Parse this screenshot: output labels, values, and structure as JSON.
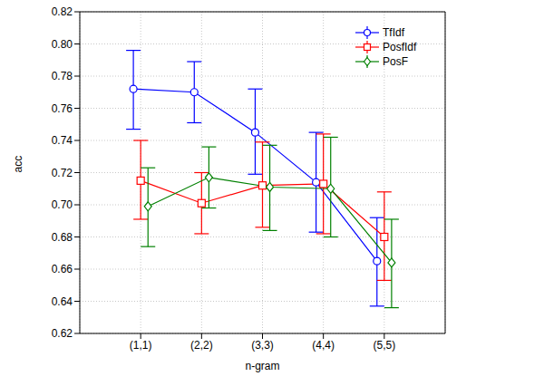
{
  "chart_data": {
    "type": "line",
    "x_label": "n-gram",
    "y_label": "acc",
    "categories": [
      "(1,1)",
      "(2,2)",
      "(3,3)",
      "(4,4)",
      "(5,5)"
    ],
    "ylim": [
      0.62,
      0.82
    ],
    "yticks": [
      0.62,
      0.64,
      0.66,
      0.68,
      {
        "value": 0.7,
        "label": "0.70"
      },
      0.72,
      0.74,
      0.76,
      0.78,
      {
        "value": 0.8,
        "label": "0.80"
      },
      0.82
    ],
    "grid": true,
    "legend": "upper right",
    "series": [
      {
        "name": "TfIdf",
        "color": "#0000ff",
        "marker": "circle",
        "values": [
          0.772,
          0.77,
          0.745,
          0.714,
          0.665
        ],
        "lower": [
          0.747,
          0.751,
          0.719,
          0.683,
          0.637
        ],
        "upper": [
          0.796,
          0.789,
          0.772,
          0.745,
          0.692
        ]
      },
      {
        "name": "PosfIdf",
        "color": "#ff0000",
        "marker": "square",
        "values": [
          0.715,
          0.701,
          0.712,
          0.713,
          0.68
        ],
        "lower": [
          0.691,
          0.682,
          0.686,
          0.682,
          0.653
        ],
        "upper": [
          0.74,
          0.72,
          0.739,
          0.744,
          0.708
        ]
      },
      {
        "name": "PosF",
        "color": "#008000",
        "marker": "diamond",
        "values": [
          0.699,
          0.717,
          0.711,
          0.71,
          0.664
        ],
        "lower": [
          0.674,
          0.698,
          0.684,
          0.68,
          0.636
        ],
        "upper": [
          0.723,
          0.736,
          0.737,
          0.742,
          0.691
        ]
      }
    ]
  }
}
